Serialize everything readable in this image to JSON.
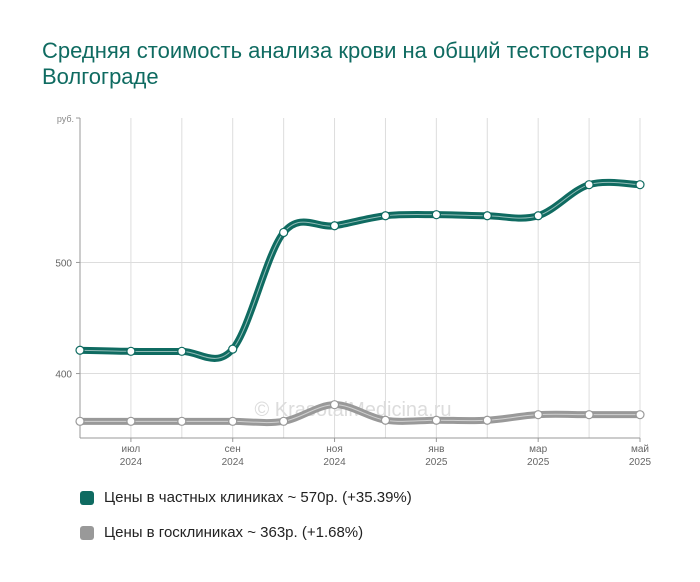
{
  "title": "Средняя стоимость анализа крови на общий тестостерон в Волгограде",
  "watermark": "© KrasotaiMedicina.ru",
  "chart_data": {
    "type": "line",
    "ylabel": "руб.",
    "yticks": [
      400,
      500
    ],
    "ylim": [
      342,
      630
    ],
    "x": [
      0,
      1,
      2,
      3,
      4,
      5,
      6,
      7,
      8,
      9,
      10,
      11
    ],
    "xlim": [
      0,
      11
    ],
    "xtick_positions": [
      1,
      3,
      5,
      7,
      9,
      11
    ],
    "xtick_labels": [
      {
        "month": "июл",
        "year": "2024"
      },
      {
        "month": "сен",
        "year": "2024"
      },
      {
        "month": "ноя",
        "year": "2024"
      },
      {
        "month": "янв",
        "year": "2025"
      },
      {
        "month": "мар",
        "year": "2025"
      },
      {
        "month": "май",
        "year": "2025"
      }
    ],
    "grid": true,
    "legend_position": "bottom",
    "series": [
      {
        "name": "Цены в частных клиниках",
        "color": "#0f6b61",
        "values": [
          421,
          420,
          420,
          422,
          527,
          533,
          542,
          543,
          542,
          542,
          570,
          570
        ]
      },
      {
        "name": "Цены в госклиниках",
        "color": "#999999",
        "values": [
          357,
          357,
          357,
          357,
          357,
          372,
          358,
          358,
          358,
          363,
          363,
          363
        ]
      }
    ]
  },
  "legend": [
    {
      "text": "Цены в частных клиниках ~ 570р. (+35.39%)",
      "color": "#0f6b61"
    },
    {
      "text": "Цены в госклиниках ~ 363р. (+1.68%)",
      "color": "#999999"
    }
  ]
}
